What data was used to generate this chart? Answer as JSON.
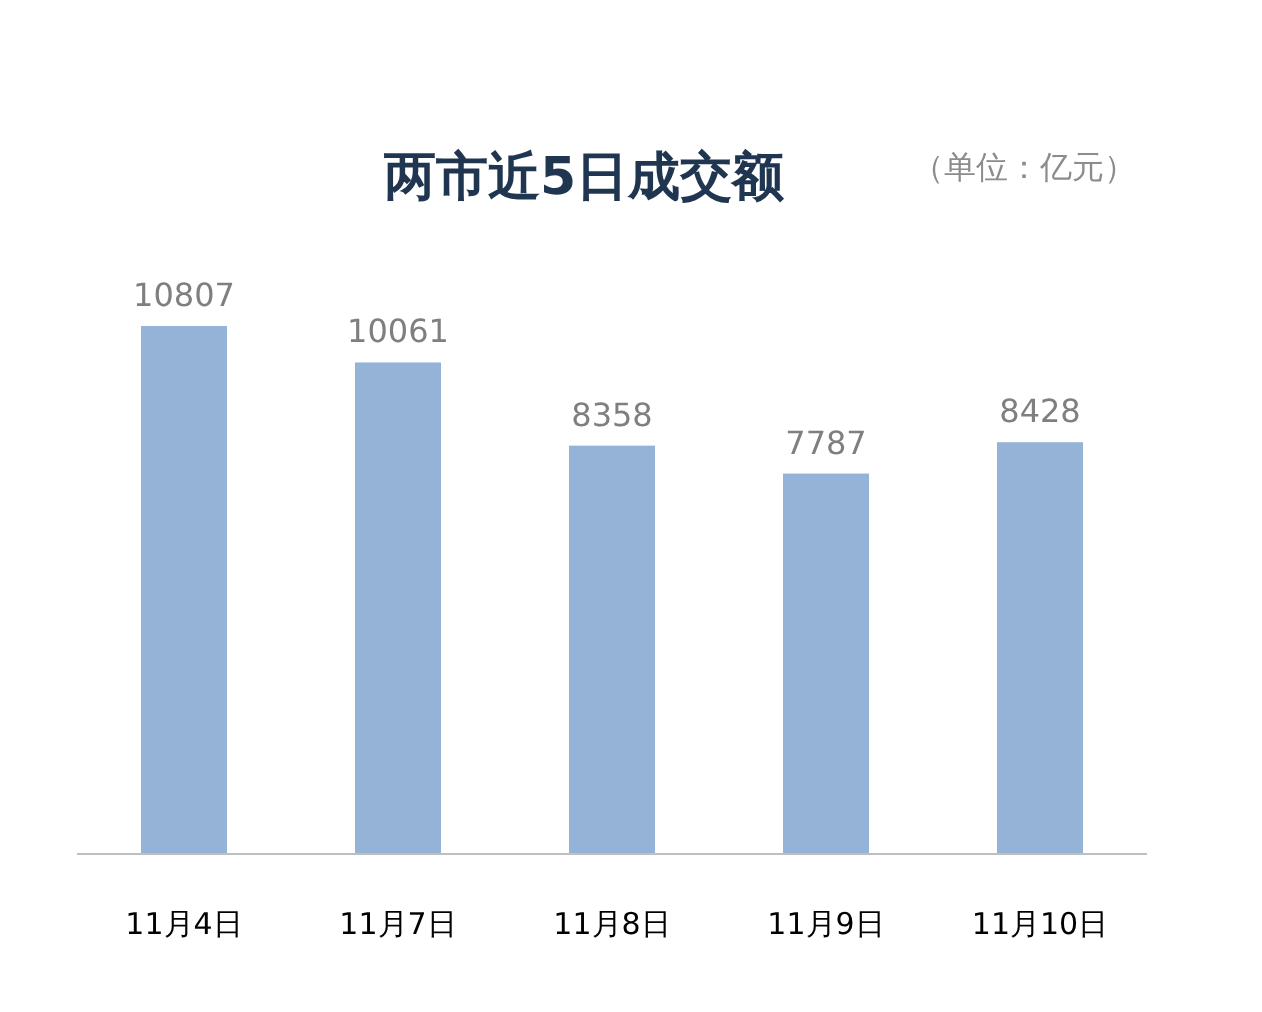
{
  "chart_data": {
    "type": "bar",
    "title": "两市近5日成交额",
    "subtitle": "（单位：亿元）",
    "categories": [
      "11月4日",
      "11月7日",
      "11月8日",
      "11月9日",
      "11月10日"
    ],
    "values": [
      10807,
      10061,
      8358,
      7787,
      8428
    ],
    "color": "#95b3d7",
    "data_labels": true
  }
}
